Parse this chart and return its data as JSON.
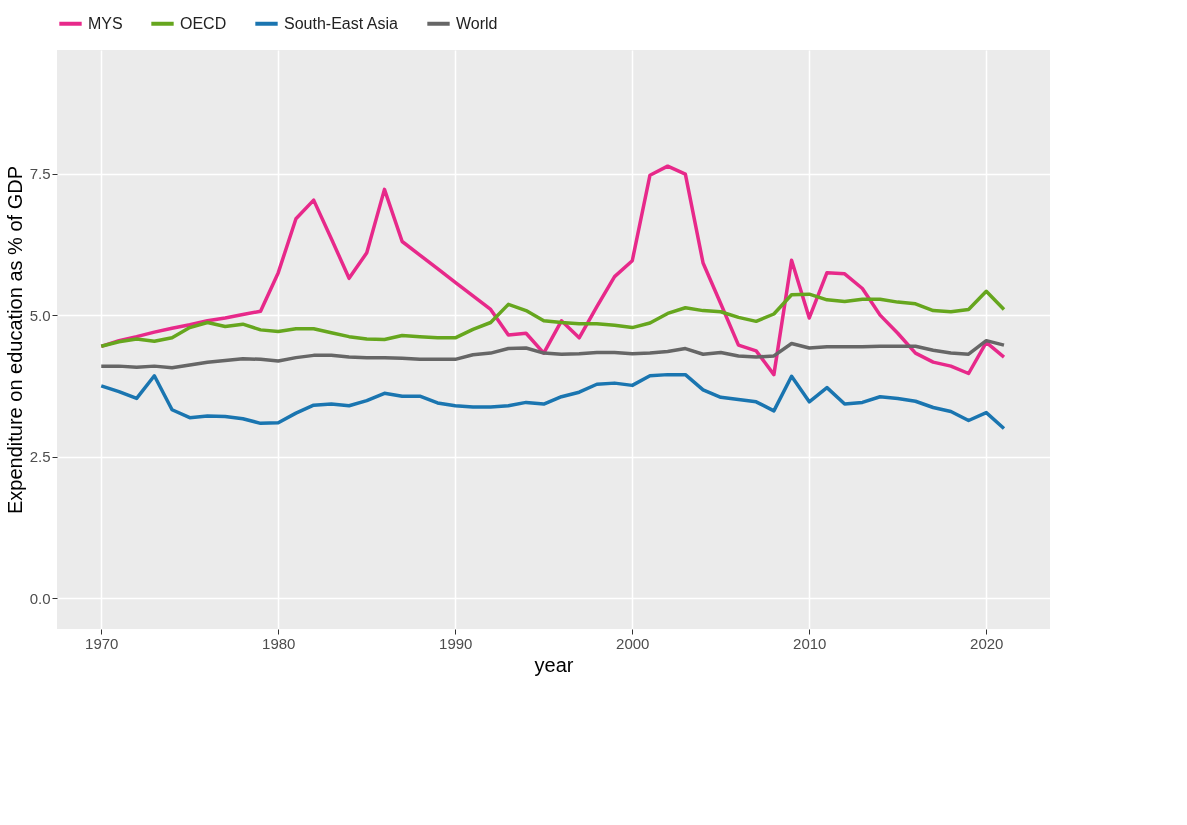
{
  "chart_data": {
    "type": "line",
    "xlabel": "year",
    "ylabel": "Expenditure on education as % of GDP",
    "x": [
      1970,
      1971,
      1972,
      1973,
      1974,
      1975,
      1976,
      1977,
      1978,
      1979,
      1980,
      1981,
      1982,
      1983,
      1984,
      1985,
      1986,
      1987,
      1988,
      1989,
      1990,
      1991,
      1992,
      1993,
      1994,
      1995,
      1996,
      1997,
      1998,
      1999,
      2000,
      2001,
      2002,
      2003,
      2004,
      2005,
      2006,
      2007,
      2008,
      2009,
      2010,
      2011,
      2012,
      2013,
      2014,
      2015,
      2016,
      2017,
      2018,
      2019,
      2020,
      2021
    ],
    "series": [
      {
        "name": "MYS",
        "color": "#e7298a",
        "values": [
          4.45,
          4.55,
          4.62,
          4.7,
          4.77,
          4.83,
          4.9,
          4.95,
          5.01,
          5.07,
          5.75,
          6.7,
          7.03,
          6.35,
          5.65,
          6.1,
          7.22,
          6.3,
          6.06,
          5.82,
          5.58,
          5.34,
          5.1,
          4.65,
          4.68,
          4.33,
          4.9,
          4.6,
          5.15,
          5.68,
          5.96,
          7.47,
          7.63,
          7.49,
          5.92,
          5.2,
          4.47,
          4.37,
          3.95,
          5.97,
          4.95,
          5.75,
          5.73,
          5.47,
          5.0,
          4.68,
          4.33,
          4.17,
          4.1,
          3.97,
          4.52,
          4.26
        ]
      },
      {
        "name": "OECD",
        "color": "#66a61e",
        "values": [
          4.45,
          4.53,
          4.58,
          4.54,
          4.6,
          4.78,
          4.87,
          4.8,
          4.84,
          4.74,
          4.71,
          4.76,
          4.76,
          4.69,
          4.62,
          4.58,
          4.57,
          4.64,
          4.62,
          4.6,
          4.6,
          4.75,
          4.87,
          5.19,
          5.08,
          4.9,
          4.87,
          4.85,
          4.85,
          4.82,
          4.78,
          4.86,
          5.03,
          5.13,
          5.08,
          5.06,
          4.96,
          4.89,
          5.02,
          5.36,
          5.37,
          5.27,
          5.24,
          5.28,
          5.28,
          5.23,
          5.2,
          5.08,
          5.06,
          5.1,
          5.42,
          5.1
        ]
      },
      {
        "name": "South-East Asia",
        "color": "#1a75b0",
        "values": [
          3.75,
          3.65,
          3.53,
          3.93,
          3.33,
          3.19,
          3.22,
          3.21,
          3.17,
          3.09,
          3.1,
          3.27,
          3.41,
          3.43,
          3.4,
          3.49,
          3.62,
          3.57,
          3.57,
          3.45,
          3.4,
          3.38,
          3.38,
          3.4,
          3.46,
          3.43,
          3.56,
          3.64,
          3.78,
          3.8,
          3.76,
          3.93,
          3.95,
          3.95,
          3.68,
          3.55,
          3.51,
          3.47,
          3.31,
          3.92,
          3.47,
          3.72,
          3.43,
          3.46,
          3.56,
          3.53,
          3.48,
          3.37,
          3.3,
          3.14,
          3.28,
          3.0
        ]
      },
      {
        "name": "World",
        "color": "#666666",
        "values": [
          4.1,
          4.1,
          4.08,
          4.1,
          4.07,
          4.12,
          4.17,
          4.2,
          4.23,
          4.22,
          4.19,
          4.25,
          4.29,
          4.29,
          4.26,
          4.25,
          4.25,
          4.24,
          4.22,
          4.22,
          4.22,
          4.3,
          4.33,
          4.41,
          4.42,
          4.33,
          4.31,
          4.32,
          4.34,
          4.34,
          4.32,
          4.33,
          4.36,
          4.41,
          4.31,
          4.34,
          4.28,
          4.26,
          4.28,
          4.5,
          4.42,
          4.44,
          4.44,
          4.44,
          4.45,
          4.45,
          4.45,
          4.38,
          4.33,
          4.31,
          4.55,
          4.47
        ]
      }
    ],
    "xlim": [
      1967.5,
      2023.6
    ],
    "xticks": [
      1970,
      1980,
      1990,
      2000,
      2010,
      2020
    ],
    "ylim": [
      -0.54,
      9.68
    ],
    "yticks": [
      {
        "value": 0,
        "label": "0.0"
      },
      {
        "value": 2.5,
        "label": "2.5"
      },
      {
        "value": 5,
        "label": "5.0"
      },
      {
        "value": 7.5,
        "label": "7.5"
      }
    ],
    "grid": true,
    "legend": "top",
    "line_style": "solid",
    "marker": "none"
  }
}
